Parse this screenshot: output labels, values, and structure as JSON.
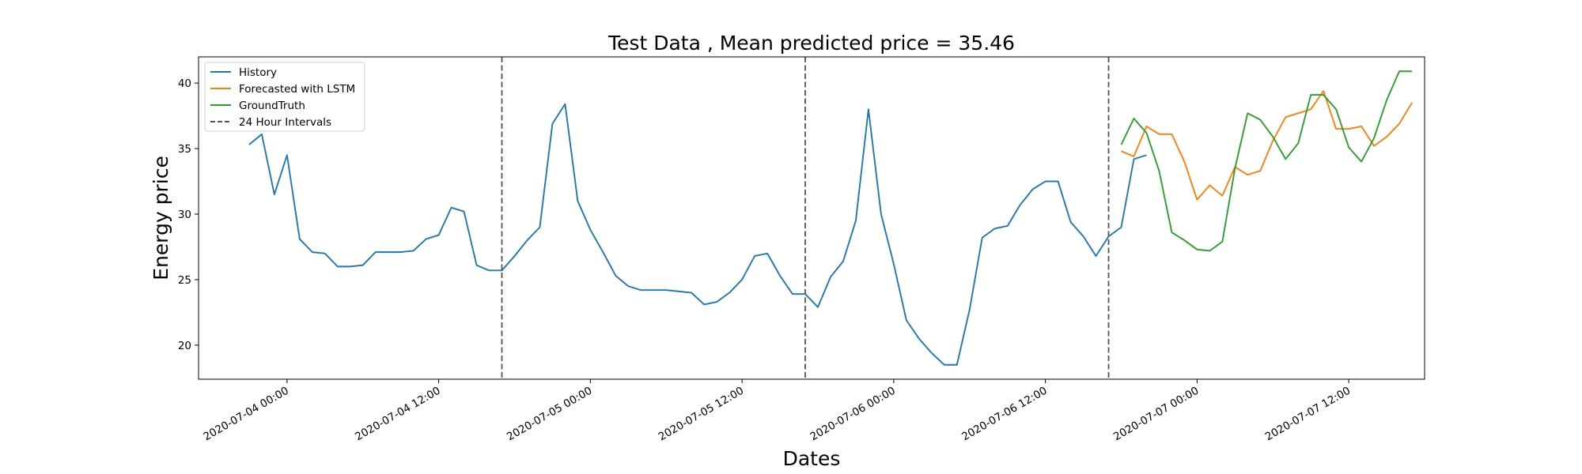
{
  "chart_data": {
    "type": "line",
    "title": "Test Data , Mean predicted price = 35.46",
    "xlabel": "Dates",
    "ylabel": "Energy price",
    "x_axis": {
      "type": "datetime",
      "unit": "hours",
      "range": [
        "2020-07-03 17:00",
        "2020-07-07 18:00"
      ],
      "ticks": [
        {
          "value": "2020-07-04 00:00",
          "label": "2020-07-04 00:00"
        },
        {
          "value": "2020-07-04 12:00",
          "label": "2020-07-04 12:00"
        },
        {
          "value": "2020-07-05 00:00",
          "label": "2020-07-05 00:00"
        },
        {
          "value": "2020-07-05 12:00",
          "label": "2020-07-05 12:00"
        },
        {
          "value": "2020-07-06 00:00",
          "label": "2020-07-06 00:00"
        },
        {
          "value": "2020-07-06 12:00",
          "label": "2020-07-06 12:00"
        },
        {
          "value": "2020-07-07 00:00",
          "label": "2020-07-07 00:00"
        },
        {
          "value": "2020-07-07 12:00",
          "label": "2020-07-07 12:00"
        }
      ]
    },
    "y_axis": {
      "range": [
        17.4,
        42.0
      ],
      "ticks": [
        20,
        25,
        30,
        35,
        40
      ]
    },
    "grid": false,
    "legend": {
      "position": "top-left",
      "entries": [
        {
          "label": "History",
          "color": "#1f77b4",
          "style": "solid"
        },
        {
          "label": "Forecasted with LSTM",
          "color": "#ff7f0e",
          "style": "solid"
        },
        {
          "label": "GroundTruth",
          "color": "#2ca02c",
          "style": "solid"
        },
        {
          "label": "24 Hour Intervals",
          "color": "#555555",
          "style": "dashed"
        }
      ]
    },
    "vlines": {
      "label": "24 Hour Intervals",
      "color": "#555555",
      "style": "dashed",
      "x": [
        "2020-07-04 17:00",
        "2020-07-05 17:00",
        "2020-07-06 17:00"
      ]
    },
    "series": [
      {
        "name": "History",
        "color": "#1f77b4",
        "start": "2020-07-03 21:00",
        "step_hours": 1,
        "values": [
          35.3,
          36.1,
          31.5,
          34.5,
          28.1,
          27.1,
          27.0,
          26.0,
          26.0,
          26.1,
          27.1,
          27.1,
          27.1,
          27.2,
          28.1,
          28.4,
          30.5,
          30.2,
          26.1,
          25.7,
          25.7,
          26.8,
          28.0,
          29.0,
          36.9,
          38.4,
          31.0,
          28.8,
          27.1,
          25.3,
          24.5,
          24.2,
          24.2,
          24.2,
          24.1,
          24.0,
          23.1,
          23.3,
          24.0,
          25.0,
          26.8,
          27.0,
          25.3,
          23.9,
          23.9,
          22.9,
          25.2,
          26.4,
          29.5,
          38.0,
          30.0,
          26.2,
          21.9,
          20.5,
          19.4,
          18.5,
          18.5,
          22.7,
          28.2,
          28.9,
          29.1,
          30.7,
          31.9,
          32.5,
          32.5,
          29.4,
          28.3,
          26.8,
          28.3,
          29.0,
          34.2,
          34.5
        ]
      },
      {
        "name": "Forecasted with LSTM",
        "color": "#ff7f0e",
        "start": "2020-07-06 18:00",
        "step_hours": 1,
        "values": [
          34.8,
          34.4,
          36.7,
          36.1,
          36.1,
          34.0,
          31.1,
          32.2,
          31.4,
          33.6,
          33.0,
          33.3,
          35.6,
          37.4,
          37.7,
          38.0,
          39.4,
          36.5,
          36.5,
          36.7,
          35.2,
          35.9,
          36.9,
          38.5
        ]
      },
      {
        "name": "GroundTruth",
        "color": "#2ca02c",
        "start": "2020-07-06 18:00",
        "step_hours": 1,
        "values": [
          35.3,
          37.3,
          36.2,
          33.3,
          28.6,
          28.0,
          27.3,
          27.2,
          27.9,
          33.5,
          37.7,
          37.2,
          35.9,
          34.2,
          35.4,
          39.1,
          39.1,
          38.0,
          35.1,
          34.0,
          35.8,
          38.7,
          40.9,
          40.9
        ]
      }
    ]
  }
}
